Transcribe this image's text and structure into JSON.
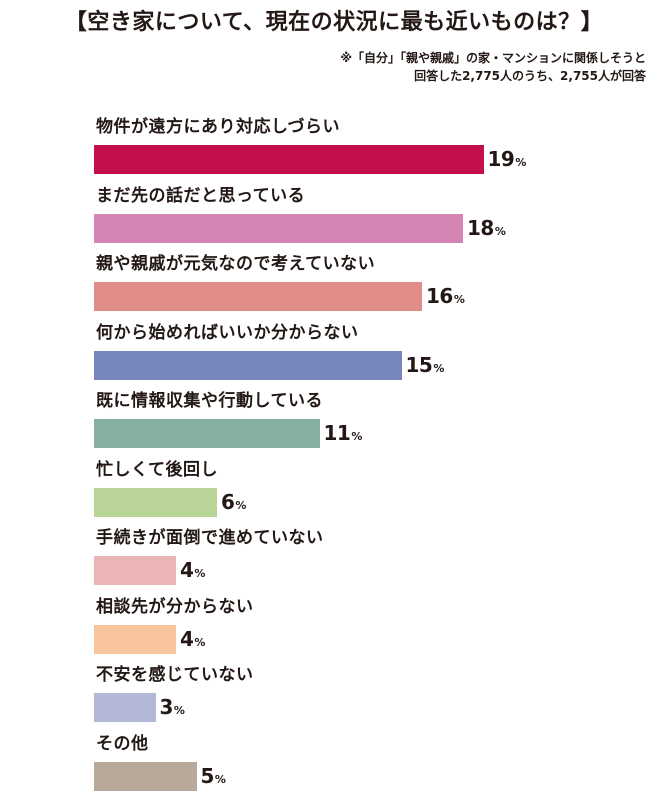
{
  "header": {
    "title": "【空き家について、現在の状況に最も近いものは？】",
    "note_line1": "※「自分」「親や親戚」の家・マンションに関係しそうと",
    "note_line2": "回答した2,775人のうち、2,755人が回答"
  },
  "chart_data": {
    "type": "bar",
    "orientation": "horizontal",
    "title": "【空き家について、現在の状況に最も近いものは？】",
    "unit": "%",
    "categories": [
      "物件が遠方にあり対応しづらい",
      "まだ先の話だと思っている",
      "親や親戚が元気なので考えていない",
      "何から始めればいいか分からない",
      "既に情報収集や行動している",
      "忙しくて後回し",
      "手続きが面倒で進めていない",
      "相談先が分からない",
      "不安を感じていない",
      "その他"
    ],
    "values": [
      19,
      18,
      16,
      15,
      11,
      6,
      4,
      4,
      3,
      5
    ],
    "colors": [
      "#c4104a",
      "#d585b3",
      "#e08d8a",
      "#7787bb",
      "#86aea1",
      "#b9d497",
      "#ebb5b5",
      "#f7c49d",
      "#b3b8d9",
      "#b8a99a"
    ],
    "grid": false,
    "legend": "none"
  }
}
